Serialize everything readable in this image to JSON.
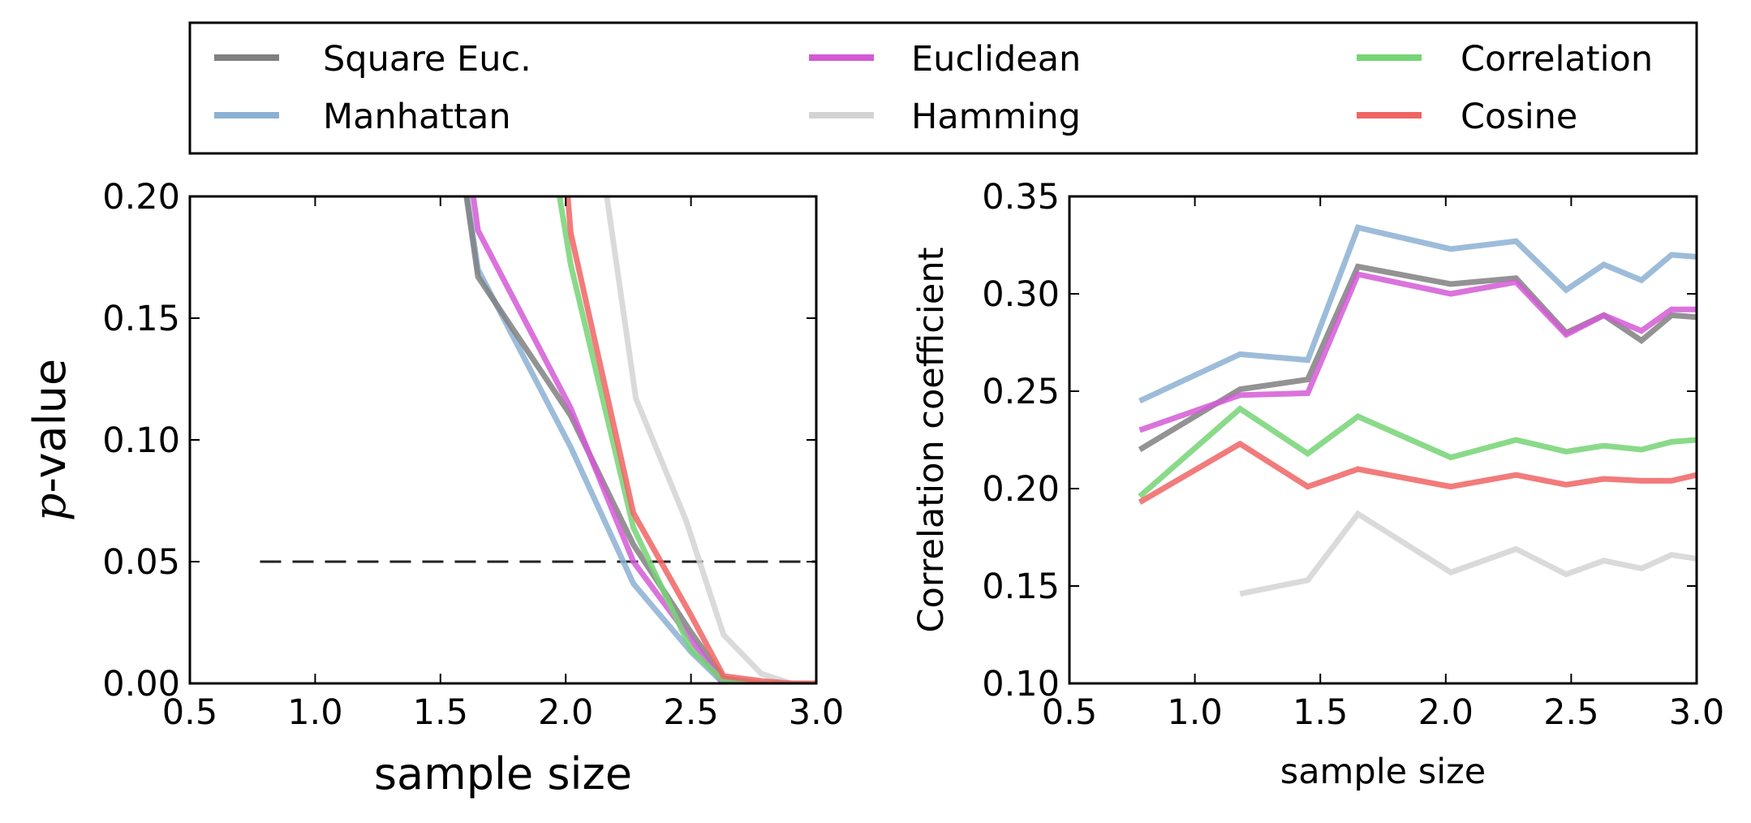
{
  "legend": {
    "placement": "top",
    "entries": [
      {
        "name": "Square Euc.",
        "color": "#808080"
      },
      {
        "name": "Euclidean",
        "color": "#d45ad6"
      },
      {
        "name": "Correlation",
        "color": "#76d476"
      },
      {
        "name": "Manhattan",
        "color": "#8cb0d2"
      },
      {
        "name": "Hamming",
        "color": "#d3d3d3"
      },
      {
        "name": "Cosine",
        "color": "#f06464"
      }
    ]
  },
  "chart_data": [
    {
      "type": "line",
      "xlabel": "sample size",
      "ylabel_var": "p",
      "ylabel_rest": "-value",
      "xlim": [
        0.5,
        3.0
      ],
      "ylim": [
        0.0,
        0.2
      ],
      "xticks": [
        "0.5",
        "1.0",
        "1.5",
        "2.0",
        "2.5",
        "3.0"
      ],
      "yticks": [
        "0.00",
        "0.05",
        "0.10",
        "0.15",
        "0.20"
      ],
      "threshold": {
        "value": 0.05,
        "x_start": 0.78,
        "x_end": 3.0,
        "style": "dashed"
      },
      "series": [
        {
          "name": "Hamming",
          "color": "#d3d3d3",
          "x": [
            2.08,
            2.28,
            2.48,
            2.63,
            2.78,
            2.9,
            3.0
          ],
          "y": [
            0.26,
            0.117,
            0.067,
            0.02,
            0.004,
            0.0,
            0.0
          ]
        },
        {
          "name": "Manhattan",
          "color": "#8cb0d2",
          "x": [
            1.52,
            1.65,
            2.02,
            2.27,
            2.5,
            2.63,
            2.78,
            2.9,
            3.0
          ],
          "y": [
            0.26,
            0.17,
            0.097,
            0.041,
            0.013,
            0.0,
            0.0,
            0.0,
            0.0
          ]
        },
        {
          "name": "Square Euc.",
          "color": "#808080",
          "x": [
            1.52,
            1.65,
            2.02,
            2.27,
            2.5,
            2.63,
            2.78,
            2.9,
            3.0
          ],
          "y": [
            0.26,
            0.167,
            0.11,
            0.057,
            0.021,
            0.002,
            0.0,
            0.0,
            0.0
          ]
        },
        {
          "name": "Euclidean",
          "color": "#d45ad6",
          "x": [
            1.55,
            1.65,
            2.02,
            2.27,
            2.5,
            2.63,
            2.78,
            2.9,
            3.0
          ],
          "y": [
            0.26,
            0.186,
            0.113,
            0.05,
            0.018,
            0.0,
            0.0,
            0.0,
            0.0
          ]
        },
        {
          "name": "Correlation",
          "color": "#76d476",
          "x": [
            1.88,
            2.02,
            2.27,
            2.5,
            2.63,
            2.78,
            2.9,
            3.0
          ],
          "y": [
            0.26,
            0.172,
            0.064,
            0.014,
            0.001,
            0.0,
            0.0,
            0.0
          ]
        },
        {
          "name": "Cosine",
          "color": "#f06464",
          "x": [
            1.96,
            2.02,
            2.27,
            2.5,
            2.63,
            2.78,
            2.9,
            3.0
          ],
          "y": [
            0.26,
            0.185,
            0.07,
            0.028,
            0.003,
            0.001,
            0.0,
            0.0
          ]
        }
      ]
    },
    {
      "type": "line",
      "xlabel": "sample size",
      "ylabel": "Correlation coefficient",
      "xlim": [
        0.5,
        3.0
      ],
      "ylim": [
        0.1,
        0.35
      ],
      "xticks": [
        "0.5",
        "1.0",
        "1.5",
        "2.0",
        "2.5",
        "3.0"
      ],
      "yticks": [
        "0.10",
        "0.15",
        "0.20",
        "0.25",
        "0.30",
        "0.35"
      ],
      "series": [
        {
          "name": "Manhattan",
          "color": "#8cb0d2",
          "x": [
            0.78,
            1.18,
            1.45,
            1.65,
            2.02,
            2.28,
            2.48,
            2.63,
            2.78,
            2.9,
            3.0
          ],
          "y": [
            0.245,
            0.269,
            0.266,
            0.334,
            0.323,
            0.327,
            0.302,
            0.315,
            0.307,
            0.32,
            0.319
          ]
        },
        {
          "name": "Square Euc.",
          "color": "#808080",
          "x": [
            0.78,
            1.18,
            1.45,
            1.65,
            2.02,
            2.28,
            2.48,
            2.63,
            2.78,
            2.9,
            3.0
          ],
          "y": [
            0.22,
            0.251,
            0.256,
            0.314,
            0.305,
            0.308,
            0.28,
            0.289,
            0.276,
            0.289,
            0.288
          ]
        },
        {
          "name": "Euclidean",
          "color": "#d45ad6",
          "x": [
            0.78,
            1.18,
            1.45,
            1.65,
            2.02,
            2.28,
            2.48,
            2.63,
            2.78,
            2.9,
            3.0
          ],
          "y": [
            0.23,
            0.248,
            0.249,
            0.31,
            0.3,
            0.306,
            0.279,
            0.289,
            0.281,
            0.292,
            0.292
          ]
        },
        {
          "name": "Correlation",
          "color": "#76d476",
          "x": [
            0.78,
            1.18,
            1.45,
            1.65,
            2.02,
            2.28,
            2.48,
            2.63,
            2.78,
            2.9,
            3.0
          ],
          "y": [
            0.196,
            0.241,
            0.218,
            0.237,
            0.216,
            0.225,
            0.219,
            0.222,
            0.22,
            0.224,
            0.225
          ]
        },
        {
          "name": "Cosine",
          "color": "#f06464",
          "x": [
            0.78,
            1.18,
            1.45,
            1.65,
            2.02,
            2.28,
            2.48,
            2.63,
            2.78,
            2.9,
            3.0
          ],
          "y": [
            0.193,
            0.223,
            0.201,
            0.21,
            0.201,
            0.207,
            0.202,
            0.205,
            0.204,
            0.204,
            0.207
          ]
        },
        {
          "name": "Hamming",
          "color": "#d3d3d3",
          "x": [
            1.18,
            1.45,
            1.65,
            2.02,
            2.28,
            2.48,
            2.63,
            2.78,
            2.9,
            3.0
          ],
          "y": [
            0.146,
            0.153,
            0.187,
            0.157,
            0.169,
            0.156,
            0.163,
            0.159,
            0.166,
            0.164
          ]
        }
      ]
    }
  ]
}
